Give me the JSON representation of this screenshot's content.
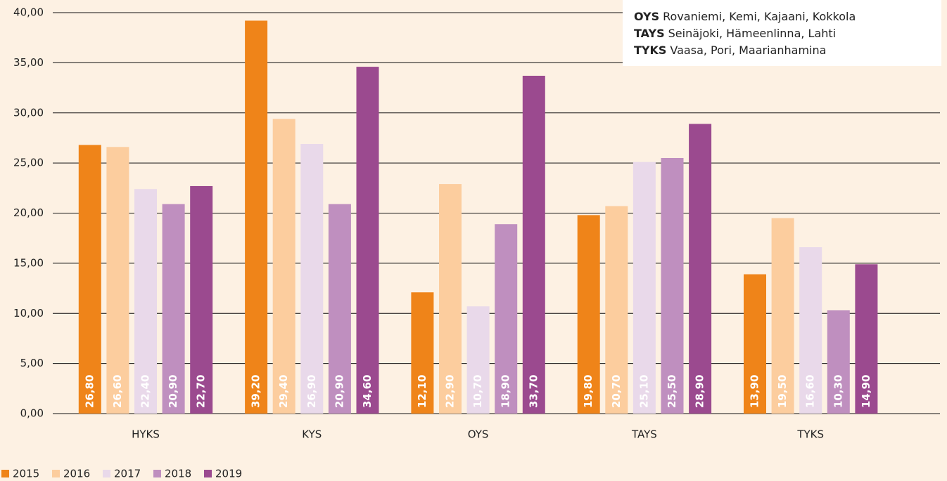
{
  "chart_data": {
    "type": "bar",
    "categories": [
      "HYKS",
      "KYS",
      "OYS",
      "TAYS",
      "TYKS"
    ],
    "series": [
      {
        "name": "2015",
        "color": "#ef8419",
        "values": [
          26.8,
          39.2,
          12.1,
          19.8,
          13.9
        ],
        "value_labels": [
          "26,80",
          "39,20",
          "12,10",
          "19,80",
          "13,90"
        ]
      },
      {
        "name": "2016",
        "color": "#fccd9e",
        "values": [
          26.6,
          29.4,
          22.9,
          20.7,
          19.5
        ],
        "value_labels": [
          "26,60",
          "29,40",
          "22,90",
          "20,70",
          "19,50"
        ]
      },
      {
        "name": "2017",
        "color": "#e9d9ea",
        "values": [
          22.4,
          26.9,
          10.7,
          25.1,
          16.6
        ],
        "value_labels": [
          "22,40",
          "26,90",
          "10,70",
          "25,10",
          "16,60"
        ]
      },
      {
        "name": "2018",
        "color": "#bf8fbf",
        "values": [
          20.9,
          20.9,
          18.9,
          25.5,
          10.3
        ],
        "value_labels": [
          "20,90",
          "20,90",
          "18,90",
          "25,50",
          "10,30"
        ]
      },
      {
        "name": "2019",
        "color": "#9b4a8f",
        "values": [
          22.7,
          34.6,
          33.7,
          28.9,
          14.9
        ],
        "value_labels": [
          "22,70",
          "34,60",
          "33,70",
          "28,90",
          "14,90"
        ]
      }
    ],
    "ylim": [
      0,
      40
    ],
    "yticks": [
      {
        "value": 0,
        "label": "0,00"
      },
      {
        "value": 5,
        "label": "5,00"
      },
      {
        "value": 10,
        "label": "10,00"
      },
      {
        "value": 15,
        "label": "15,00"
      },
      {
        "value": 20,
        "label": "20,00"
      },
      {
        "value": 25,
        "label": "25,00"
      },
      {
        "value": 30,
        "label": "30,00"
      },
      {
        "value": 35,
        "label": "35,00"
      },
      {
        "value": 40,
        "label": "40,00"
      }
    ],
    "grid": true,
    "notes": [
      {
        "code": "OYS",
        "text": "Rovaniemi, Kemi, Kajaani, Kokkola"
      },
      {
        "code": "TAYS",
        "text": "Seinäjoki, Hämeenlinna, Lahti"
      },
      {
        "code": "TYKS",
        "text": "Vaasa, Pori, Maarianhamina"
      }
    ]
  }
}
